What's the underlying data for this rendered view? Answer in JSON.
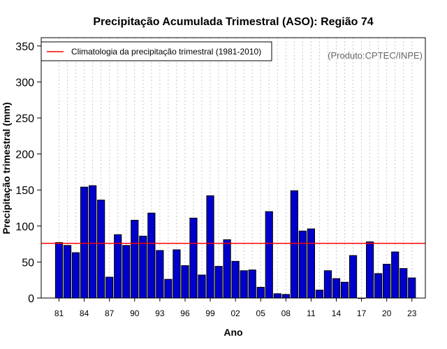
{
  "chart_data": {
    "type": "bar",
    "title": "Precipitação Acumulada Trimestral (ASO): Região 74",
    "xlabel": "Ano",
    "ylabel": "Precipitação trimestral (mm)",
    "ylim": [
      0,
      360
    ],
    "yticks": [
      0,
      50,
      100,
      150,
      200,
      250,
      300,
      350
    ],
    "source_note": "(Produto:CPTEC/INPE)",
    "legend": {
      "label": "Climatologia da precipitação trimestral (1981-2010)",
      "placement": "top-left",
      "color": "#ff0000"
    },
    "climatology": 76,
    "bar_color": "#0000cc",
    "categories": [
      "81",
      "82",
      "83",
      "84",
      "85",
      "86",
      "87",
      "88",
      "89",
      "90",
      "91",
      "92",
      "93",
      "94",
      "95",
      "96",
      "97",
      "98",
      "99",
      "00",
      "01",
      "02",
      "03",
      "04",
      "05",
      "06",
      "07",
      "08",
      "09",
      "10",
      "11",
      "12",
      "13",
      "14",
      "15",
      "16",
      "17",
      "18",
      "19",
      "20",
      "21",
      "22",
      "23"
    ],
    "values": [
      77,
      73,
      63,
      154,
      156,
      136,
      29,
      88,
      73,
      108,
      86,
      118,
      66,
      26,
      67,
      45,
      111,
      32,
      142,
      44,
      81,
      51,
      38,
      39,
      15,
      120,
      6,
      5,
      149,
      93,
      96,
      11,
      38,
      27,
      22,
      59,
      0,
      78,
      34,
      47,
      64,
      41,
      28
    ],
    "xtick_labels": [
      "81",
      "84",
      "87",
      "90",
      "93",
      "96",
      "99",
      "02",
      "05",
      "08",
      "11",
      "14",
      "17",
      "20",
      "23"
    ]
  }
}
